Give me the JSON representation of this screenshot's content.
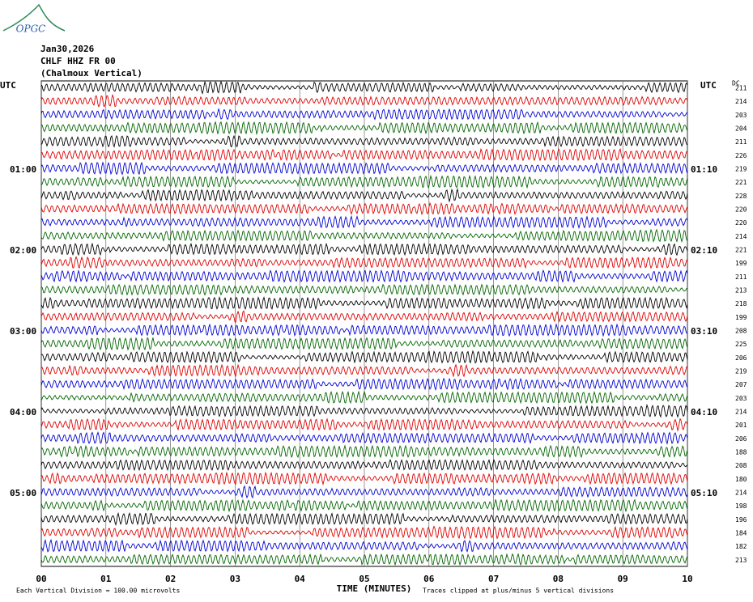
{
  "logo": "OPGC",
  "header": {
    "date": "Jan30,2026",
    "station": "CHLF HHZ FR 00",
    "location": "(Chalmoux Vertical)"
  },
  "left_axis": {
    "title": "UTC",
    "labels": [
      "01:00",
      "02:00",
      "03:00",
      "04:00",
      "05:00"
    ]
  },
  "right_axis": {
    "title": "UTC",
    "labels": [
      "01:10",
      "02:10",
      "03:10",
      "04:10",
      "05:10"
    ]
  },
  "dc": {
    "title": "DC",
    "values": [
      211,
      214,
      203,
      204,
      211,
      226,
      219,
      221,
      228,
      220,
      220,
      214,
      221,
      199,
      211,
      213,
      218,
      199,
      208,
      225,
      206,
      219,
      207,
      203,
      214,
      201,
      206,
      188,
      208,
      180,
      214,
      198,
      196,
      184,
      182,
      213
    ]
  },
  "x_axis": {
    "title": "TIME (MINUTES)",
    "ticks": [
      "00",
      "01",
      "02",
      "03",
      "04",
      "05",
      "06",
      "07",
      "08",
      "09",
      "10"
    ]
  },
  "footer": {
    "left": "Each Vertical Division = 100.00 microvolts",
    "right": "Traces clipped at plus/minus 5 vertical divisions"
  }
}
